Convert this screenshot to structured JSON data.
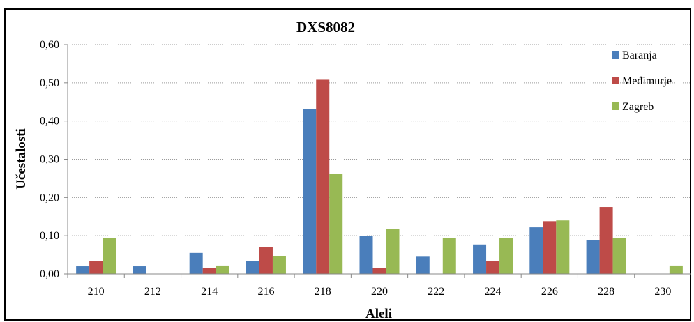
{
  "chart_data": {
    "type": "bar",
    "title": "DXS8082",
    "xlabel": "Aleli",
    "ylabel": "Učestalosti",
    "ylim": [
      0,
      0.6
    ],
    "yticks": [
      "0,00",
      "0,10",
      "0,20",
      "0,30",
      "0,40",
      "0,50",
      "0,60"
    ],
    "categories": [
      "210",
      "212",
      "214",
      "216",
      "218",
      "220",
      "222",
      "224",
      "226",
      "228",
      "230"
    ],
    "grid": true,
    "legend_position": "top-right",
    "series": [
      {
        "name": "Baranja",
        "color": "#4a7ebb",
        "values": [
          0.02,
          0.02,
          0.055,
          0.033,
          0.432,
          0.1,
          0.045,
          0.077,
          0.122,
          0.088,
          0
        ]
      },
      {
        "name": "Međimurje",
        "color": "#be4b48",
        "values": [
          0.033,
          0,
          0.015,
          0.07,
          0.508,
          0.015,
          0,
          0.033,
          0.138,
          0.175,
          0
        ]
      },
      {
        "name": "Zagreb",
        "color": "#98b954",
        "values": [
          0.093,
          0,
          0.022,
          0.046,
          0.262,
          0.117,
          0.093,
          0.093,
          0.14,
          0.093,
          0.022
        ]
      }
    ]
  }
}
